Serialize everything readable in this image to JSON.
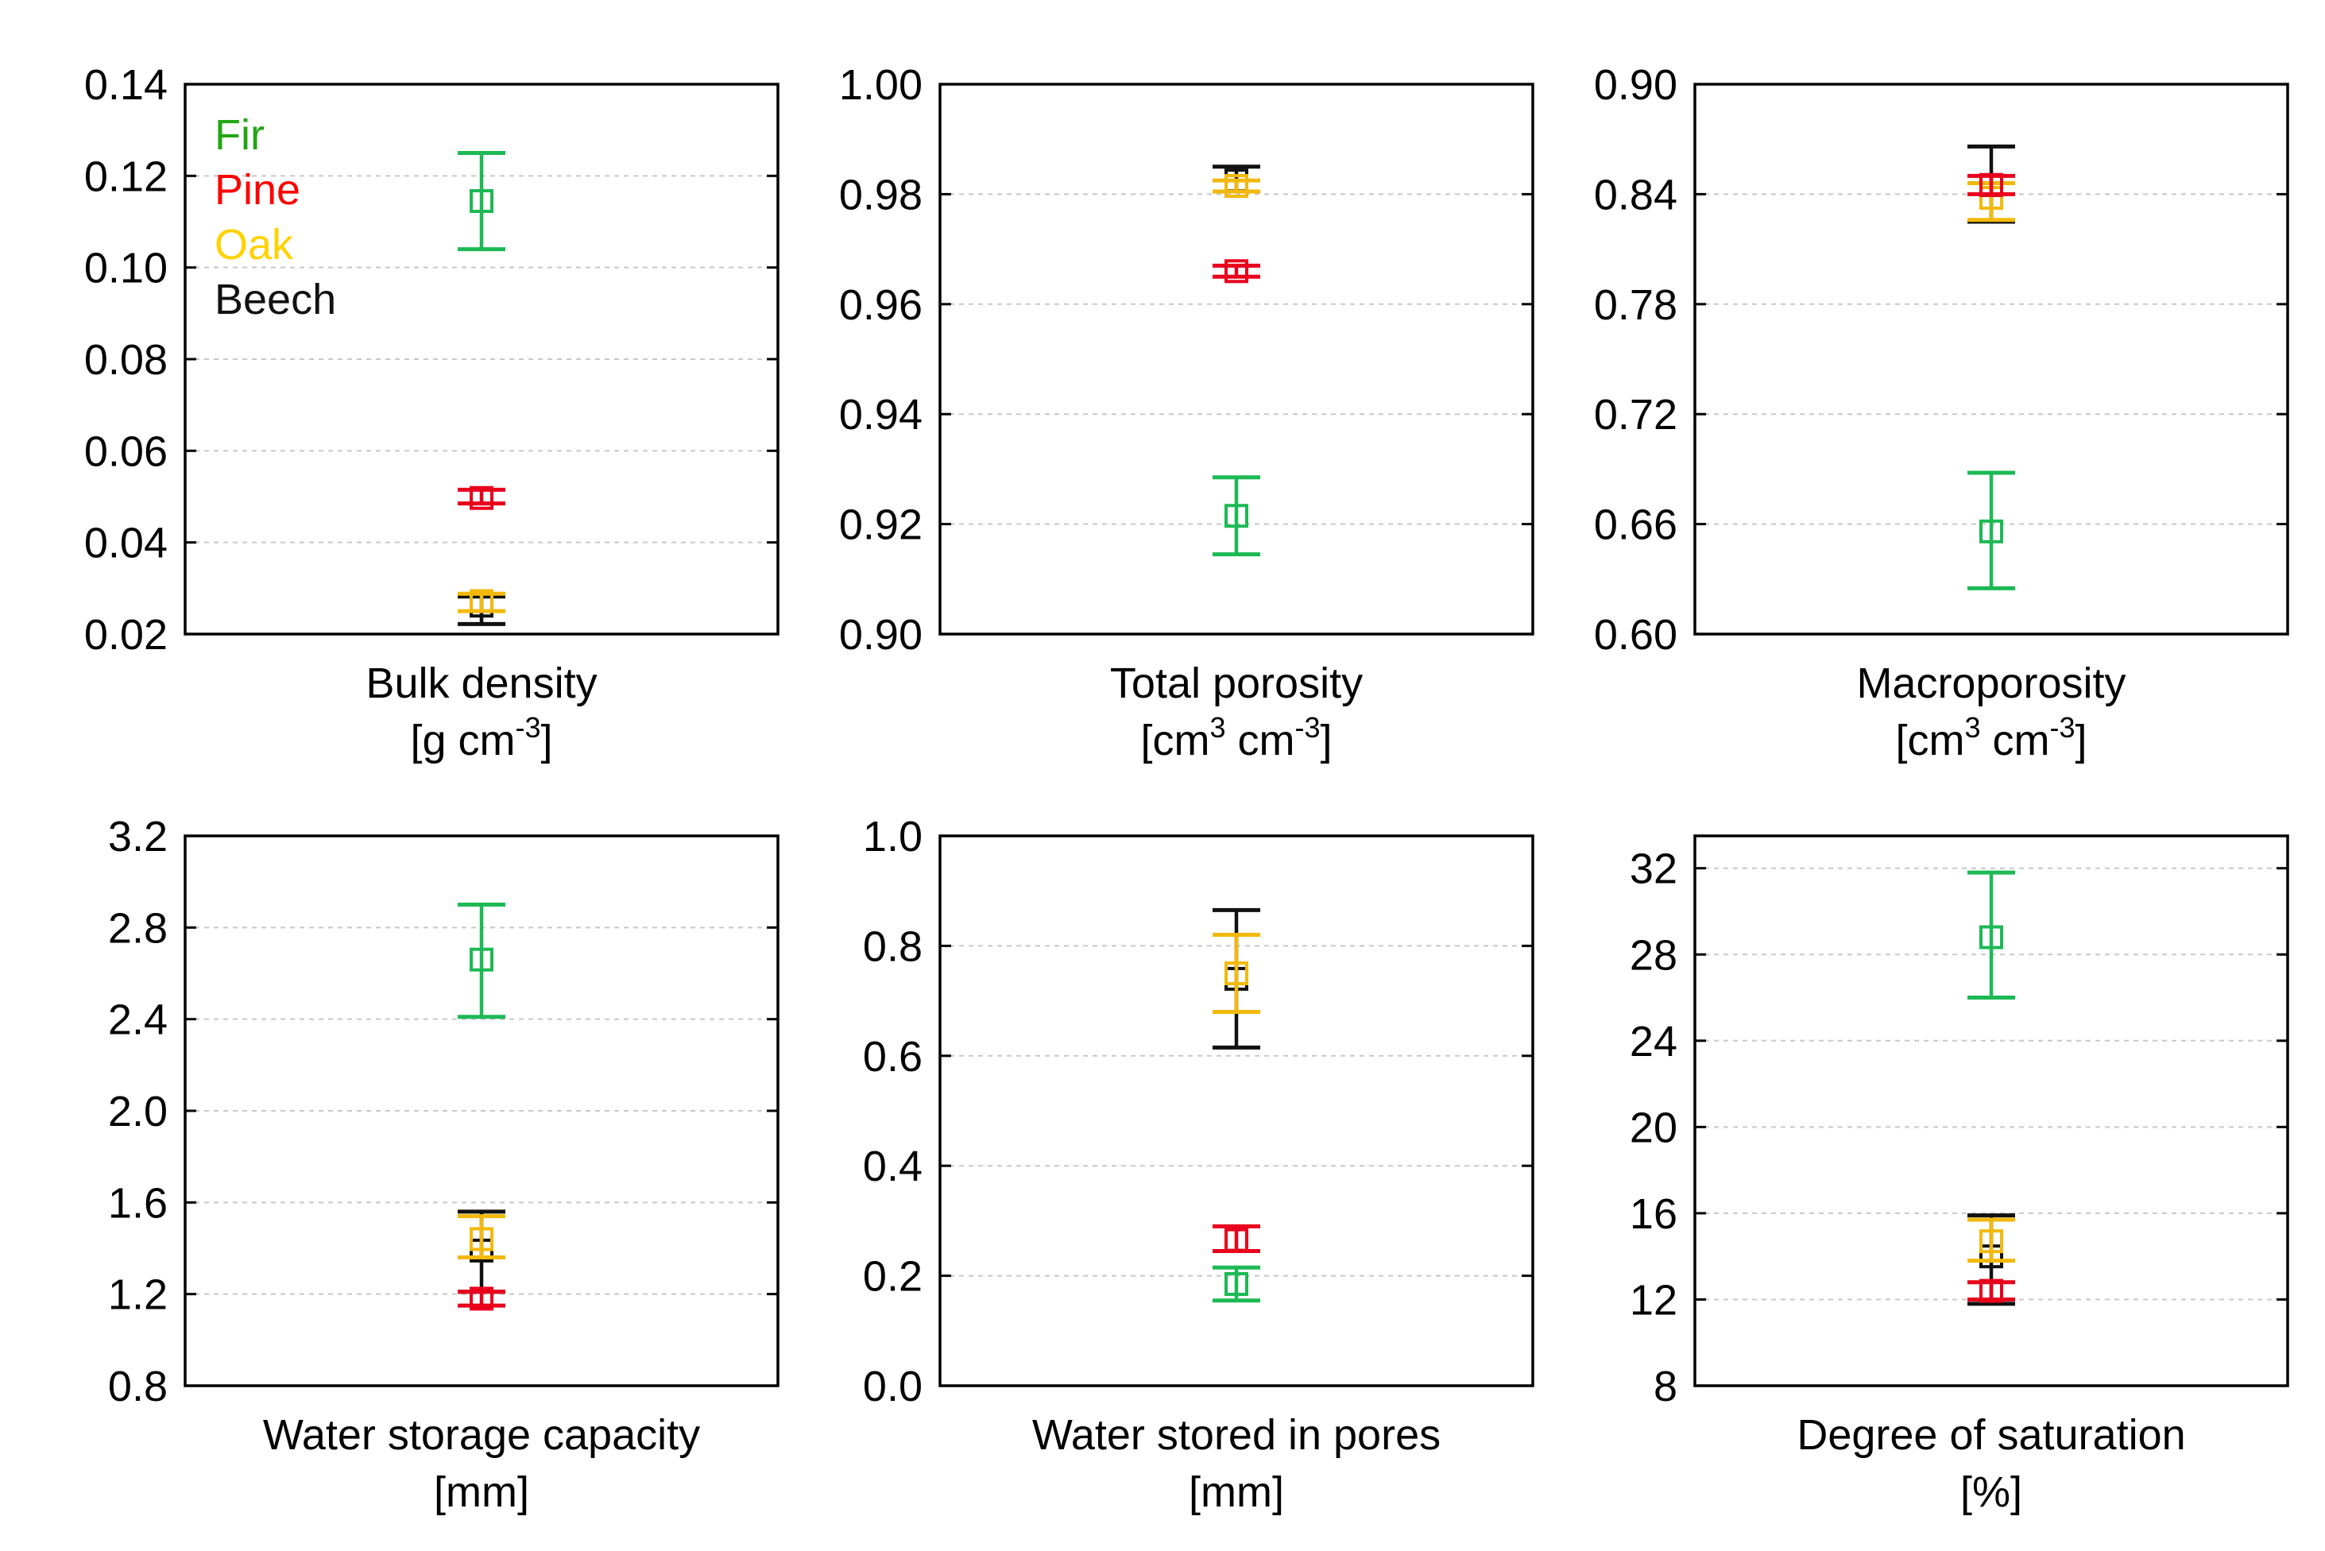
{
  "series_colors": {
    "Fir": "#1db954",
    "Pine": "#e8001c",
    "Oak": "#f2b90c",
    "Beech": "#111111"
  },
  "legend": [
    {
      "name": "Fir",
      "color": "#1db954",
      "text_color": "#22a614"
    },
    {
      "name": "Pine",
      "color": "#e8001c",
      "text_color": "#ff0000"
    },
    {
      "name": "Oak",
      "color": "#f2b90c",
      "text_color": "#ffd200"
    },
    {
      "name": "Beech",
      "color": "#111111",
      "text_color": "#111111"
    }
  ],
  "chart_data": [
    {
      "type": "scatter",
      "xlabel": "Bulk density",
      "unit_text": "[g cm",
      "unit_sup": "-3",
      "unit_tail": "]",
      "ylim": [
        0.02,
        0.14
      ],
      "yticks": [
        "0.02",
        "0.04",
        "0.06",
        "0.08",
        "0.10",
        "0.12",
        "0.14"
      ],
      "grid": true,
      "legend": "top-left",
      "series": [
        {
          "name": "Fir",
          "value": 0.1145,
          "lower": 0.104,
          "upper": 0.125
        },
        {
          "name": "Pine",
          "value": 0.0497,
          "lower": 0.0485,
          "upper": 0.0515
        },
        {
          "name": "Oak",
          "value": 0.0272,
          "lower": 0.025,
          "upper": 0.0288
        },
        {
          "name": "Beech",
          "value": 0.0262,
          "lower": 0.0222,
          "upper": 0.0282
        }
      ]
    },
    {
      "type": "scatter",
      "xlabel": "Total porosity",
      "unit_text": "[cm",
      "unit_sup": "3",
      "unit_mid": " cm",
      "unit_sup2": "-3",
      "unit_tail": "]",
      "ylim": [
        0.9,
        1.0
      ],
      "yticks": [
        "0.90",
        "0.92",
        "0.94",
        "0.96",
        "0.98",
        "1.00"
      ],
      "grid": true,
      "series": [
        {
          "name": "Fir",
          "value": 0.9215,
          "lower": 0.9145,
          "upper": 0.9285
        },
        {
          "name": "Pine",
          "value": 0.966,
          "lower": 0.965,
          "upper": 0.967
        },
        {
          "name": "Oak",
          "value": 0.9815,
          "lower": 0.9805,
          "upper": 0.9825
        },
        {
          "name": "Beech",
          "value": 0.9825,
          "lower": 0.9805,
          "upper": 0.985
        }
      ]
    },
    {
      "type": "scatter",
      "xlabel": "Macroporosity",
      "unit_text": "[cm",
      "unit_sup": "3",
      "unit_mid": " cm",
      "unit_sup2": "-3",
      "unit_tail": "]",
      "ylim": [
        0.6,
        0.9
      ],
      "yticks": [
        "0.60",
        "0.66",
        "0.72",
        "0.78",
        "0.84",
        "0.90"
      ],
      "grid": true,
      "series": [
        {
          "name": "Fir",
          "value": 0.656,
          "lower": 0.625,
          "upper": 0.688
        },
        {
          "name": "Pine",
          "value": 0.845,
          "lower": 0.84,
          "upper": 0.85
        },
        {
          "name": "Oak",
          "value": 0.838,
          "lower": 0.826,
          "upper": 0.846
        },
        {
          "name": "Beech",
          "value": 0.845,
          "lower": 0.825,
          "upper": 0.866
        }
      ]
    },
    {
      "type": "scatter",
      "xlabel": "Water storage capacity",
      "unit_text": "[mm]",
      "ylim": [
        0.8,
        3.2
      ],
      "yticks": [
        "0.8",
        "1.2",
        "1.6",
        "2.0",
        "2.4",
        "2.8",
        "3.2"
      ],
      "grid": true,
      "series": [
        {
          "name": "Fir",
          "value": 2.66,
          "lower": 2.41,
          "upper": 2.9
        },
        {
          "name": "Pine",
          "value": 1.18,
          "lower": 1.15,
          "upper": 1.21
        },
        {
          "name": "Oak",
          "value": 1.44,
          "lower": 1.36,
          "upper": 1.54
        },
        {
          "name": "Beech",
          "value": 1.39,
          "lower": 1.21,
          "upper": 1.56
        }
      ]
    },
    {
      "type": "scatter",
      "xlabel": "Water stored in pores",
      "unit_text": "[mm]",
      "ylim": [
        0.0,
        1.0
      ],
      "yticks": [
        "0.0",
        "0.2",
        "0.4",
        "0.6",
        "0.8",
        "1.0"
      ],
      "grid": true,
      "series": [
        {
          "name": "Fir",
          "value": 0.185,
          "lower": 0.155,
          "upper": 0.215
        },
        {
          "name": "Pine",
          "value": 0.265,
          "lower": 0.245,
          "upper": 0.29
        },
        {
          "name": "Oak",
          "value": 0.75,
          "lower": 0.68,
          "upper": 0.82
        },
        {
          "name": "Beech",
          "value": 0.74,
          "lower": 0.615,
          "upper": 0.865
        }
      ]
    },
    {
      "type": "scatter",
      "xlabel": "Degree of saturation",
      "unit_text": "[%]",
      "ylim": [
        8,
        33.5
      ],
      "yticks": [
        "8",
        "12",
        "16",
        "20",
        "24",
        "28",
        "32"
      ],
      "yticks_values": [
        8,
        12,
        16,
        20,
        24,
        28,
        32
      ],
      "grid": true,
      "series": [
        {
          "name": "Fir",
          "value": 28.8,
          "lower": 26.0,
          "upper": 31.8
        },
        {
          "name": "Pine",
          "value": 12.4,
          "lower": 12.0,
          "upper": 12.8
        },
        {
          "name": "Oak",
          "value": 14.7,
          "lower": 13.8,
          "upper": 15.7
        },
        {
          "name": "Beech",
          "value": 14.0,
          "lower": 11.8,
          "upper": 15.9
        }
      ]
    }
  ]
}
